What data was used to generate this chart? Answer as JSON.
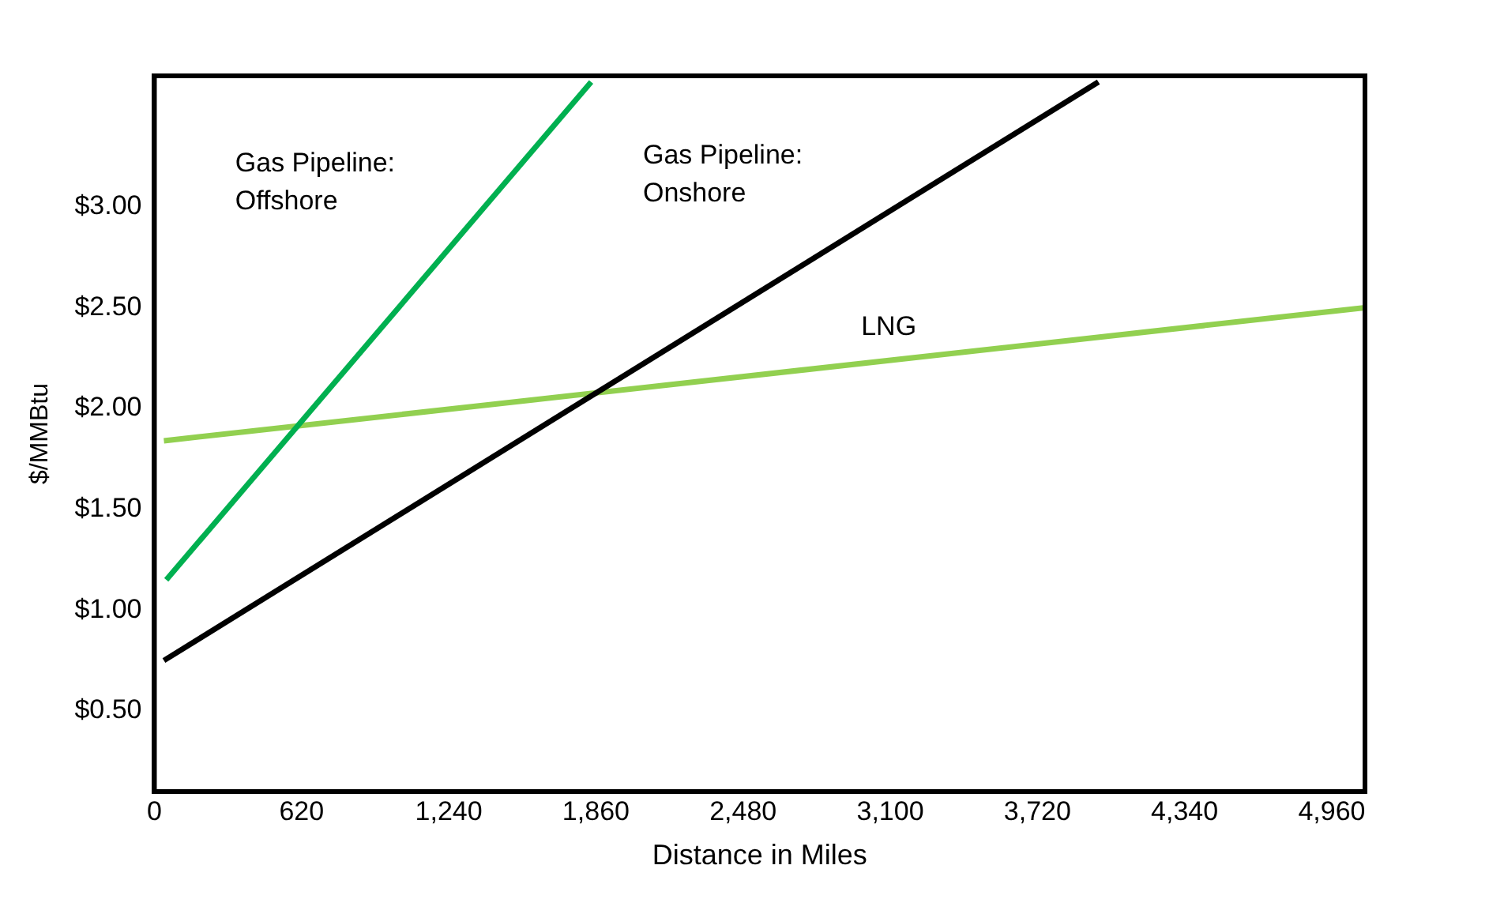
{
  "chart_data": {
    "type": "line",
    "xlabel": "Distance in Miles",
    "ylabel": "$/MMBtu",
    "xlim": [
      0,
      5100
    ],
    "ylim": [
      0.1,
      3.65
    ],
    "xticks": [
      0,
      {
        "value": 620,
        "label": "620"
      },
      {
        "value": 1240,
        "label": "1,240"
      },
      {
        "value": 1860,
        "label": "1,860"
      },
      {
        "value": 2480,
        "label": "2,480"
      },
      {
        "value": 3100,
        "label": "3,100"
      },
      {
        "value": 3720,
        "label": "3,720"
      },
      {
        "value": 4340,
        "label": "4,340"
      },
      {
        "value": 4960,
        "label": "4,960"
      }
    ],
    "yticks": [
      {
        "value": 0.5,
        "label": "$0.50"
      },
      {
        "value": 1,
        "label": "$1.00"
      },
      {
        "value": 1.5,
        "label": "$1.50"
      },
      {
        "value": 2,
        "label": "$2.00"
      },
      {
        "value": 2.5,
        "label": "$2.50"
      },
      {
        "value": 3,
        "label": "$3.00"
      }
    ],
    "series": [
      {
        "name": "Gas Pipeline: Offshore",
        "color": "#00b050",
        "x": [
          50,
          1840
        ],
        "values": [
          1.15,
          3.62
        ]
      },
      {
        "name": "Gas Pipeline: Onshore",
        "color": "#000000",
        "x": [
          40,
          3977
        ],
        "values": [
          0.75,
          3.62
        ]
      },
      {
        "name": "LNG",
        "color": "#92d050",
        "x": [
          40,
          5100
        ],
        "values": [
          1.84,
          2.5
        ]
      }
    ],
    "grid": false,
    "legend": false,
    "marker": "none",
    "line_style": "solid"
  }
}
